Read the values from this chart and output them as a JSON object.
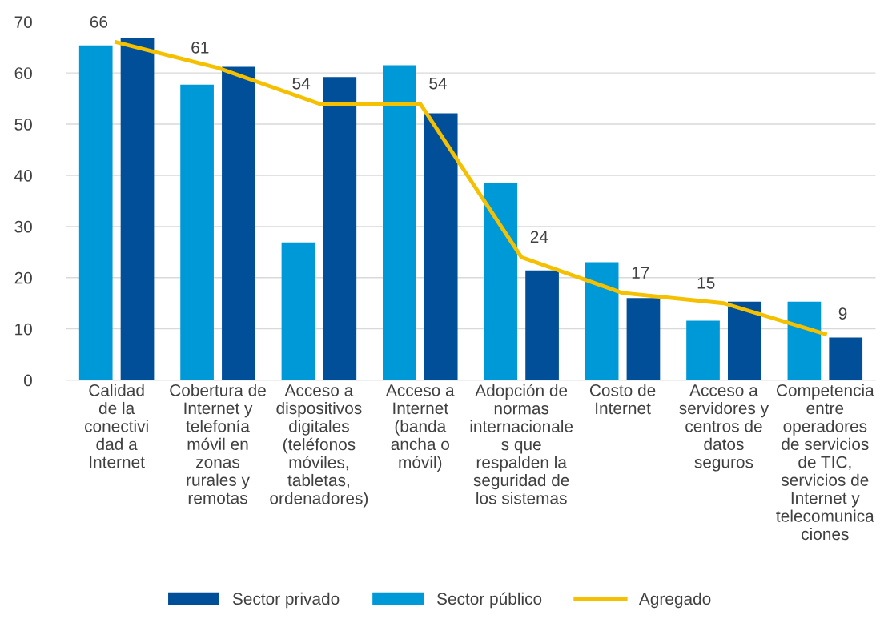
{
  "chart_data": {
    "type": "bar",
    "categories": [
      "Calidad\nde la\nconectivi\ndad a\nInternet",
      "Cobertura de\nInternet y\ntelefonía\nmóvil en\nzonas\nrurales y\nremotas",
      "Acceso a\ndispositivos\ndigitales\n(teléfonos\nmóviles,\ntabletas,\nordenadores)",
      "Acceso a\nInternet\n(banda\nancha o\nmóvil)",
      "Adopción de\nnormas\ninternacionale\ns que\nrespalden la\nseguridad de\nlos sistemas",
      "Costo de\nInternet",
      "Acceso a\nservidores y\ncentros de\ndatos\nseguros",
      "Competencia\nentre\noperadores\nde servicios\nde TIC,\nservicios de\nInternet y\ntelecomunica\nciones"
    ],
    "series": [
      {
        "name": "Sector público",
        "color": "#0099d8",
        "values": [
          65.4,
          57.7,
          26.9,
          61.5,
          38.5,
          23.0,
          11.6,
          15.3
        ]
      },
      {
        "name": "Sector privado",
        "color": "#004f98",
        "values": [
          66.8,
          61.2,
          59.2,
          52.1,
          21.4,
          16.0,
          15.3,
          8.3
        ]
      },
      {
        "name": "Agregado",
        "type": "line",
        "color": "#f5c000",
        "values": [
          66,
          61,
          54,
          54,
          24,
          17,
          15,
          9
        ],
        "data_labels": true
      }
    ],
    "ylim": [
      0,
      70
    ],
    "yticks": [
      0,
      10,
      20,
      30,
      40,
      50,
      60,
      70
    ],
    "grid": "y",
    "legend": "bottom"
  }
}
